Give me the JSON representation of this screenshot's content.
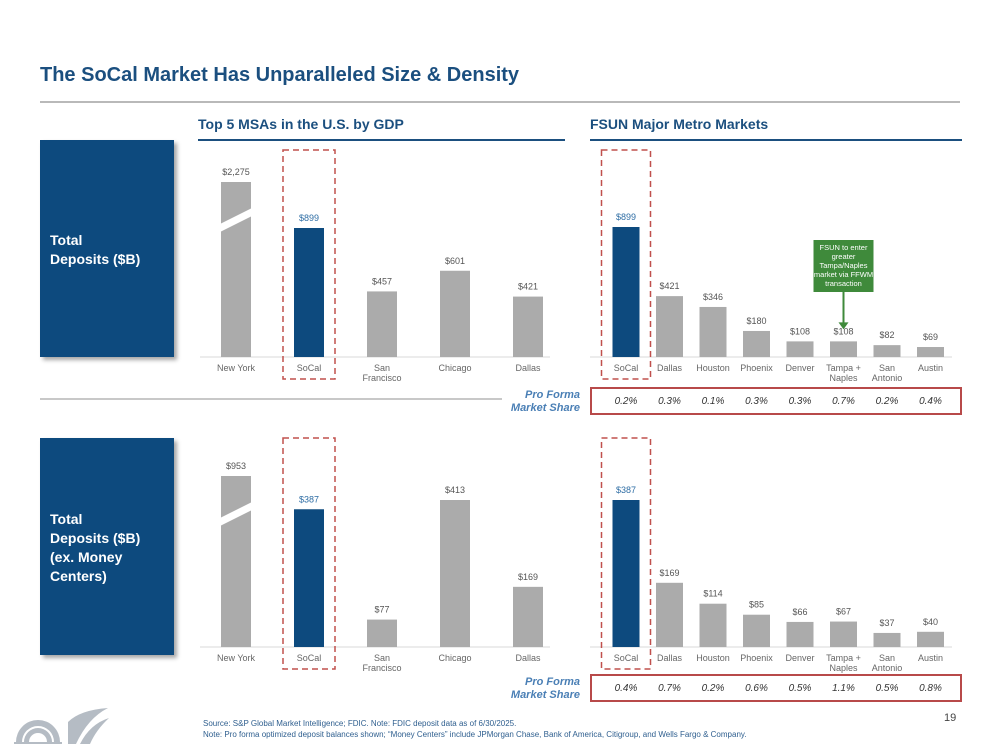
{
  "title": "The SoCal Market Has Unparalleled Size & Density",
  "left_header": "Top 5 MSAs in the U.S. by GDP",
  "right_header": "FSUN Major Metro Markets",
  "row_labels": {
    "top": [
      "Total",
      "Deposits ($B)"
    ],
    "bottom": [
      "Total",
      "Deposits ($B)",
      "(ex. Money",
      "Centers)"
    ]
  },
  "pro_forma_label": [
    "Pro Forma",
    "Market Share"
  ],
  "annotation": [
    "FSUN to enter",
    "greater",
    "Tampa/Naples",
    "market via FFWM",
    "transaction"
  ],
  "footer": [
    "Source: S&P Global Market Intelligence; FDIC. Note: FDIC deposit data as of 6/30/2025.",
    "Note: Pro forma optimized deposit balances shown; “Money Centers” include JPMorgan Chase, Bank of America, Citigroup, and Wells Fargo & Company."
  ],
  "page_number": "19",
  "colors": {
    "highlight": "#0d4a7e",
    "bar": "#ababab",
    "dash": "#c0504d",
    "annotation": "#3f8a3b",
    "label_highlight": "#2e6da4"
  },
  "chart_data": [
    {
      "type": "bar",
      "title": "Top 5 MSAs in the U.S. by GDP",
      "ylabel": "Total Deposits ($B)",
      "categories": [
        "New York",
        "SoCal",
        "San Francisco",
        "Chicago",
        "Dallas"
      ],
      "category_lines": [
        [
          "New York"
        ],
        [
          "SoCal"
        ],
        [
          "San",
          "Francisco"
        ],
        [
          "Chicago"
        ],
        [
          "Dallas"
        ]
      ],
      "values": [
        2275,
        899,
        457,
        601,
        421
      ],
      "labels": [
        "$2,275",
        "$899",
        "$457",
        "$601",
        "$421"
      ],
      "highlight": "SoCal",
      "broken_axis": "New York"
    },
    {
      "type": "bar",
      "title": "FSUN Major Metro Markets",
      "ylabel": "Total Deposits ($B)",
      "categories": [
        "SoCal",
        "Dallas",
        "Houston",
        "Phoenix",
        "Denver",
        "Tampa + Naples",
        "San Antonio",
        "Austin"
      ],
      "category_lines": [
        [
          "SoCal"
        ],
        [
          "Dallas"
        ],
        [
          "Houston"
        ],
        [
          "Phoenix"
        ],
        [
          "Denver"
        ],
        [
          "Tampa +",
          "Naples"
        ],
        [
          "San",
          "Antonio"
        ],
        [
          "Austin"
        ]
      ],
      "values": [
        899,
        421,
        346,
        180,
        108,
        108,
        82,
        69
      ],
      "labels": [
        "$899",
        "$421",
        "$346",
        "$180",
        "$108",
        "$108",
        "$82",
        "$69"
      ],
      "highlight": "SoCal",
      "pro_forma_market_share": [
        "0.2%",
        "0.3%",
        "0.1%",
        "0.3%",
        "0.3%",
        "0.7%",
        "0.2%",
        "0.4%"
      ]
    },
    {
      "type": "bar",
      "ylabel": "Total Deposits ($B) (ex. Money Centers)",
      "categories": [
        "New York",
        "SoCal",
        "San Francisco",
        "Chicago",
        "Dallas"
      ],
      "category_lines": [
        [
          "New York"
        ],
        [
          "SoCal"
        ],
        [
          "San",
          "Francisco"
        ],
        [
          "Chicago"
        ],
        [
          "Dallas"
        ]
      ],
      "values": [
        953,
        387,
        77,
        413,
        169
      ],
      "labels": [
        "$953",
        "$387",
        "$77",
        "$413",
        "$169"
      ],
      "highlight": "SoCal",
      "broken_axis": "New York"
    },
    {
      "type": "bar",
      "ylabel": "Total Deposits ($B) (ex. Money Centers)",
      "categories": [
        "SoCal",
        "Dallas",
        "Houston",
        "Phoenix",
        "Denver",
        "Tampa + Naples",
        "San Antonio",
        "Austin"
      ],
      "category_lines": [
        [
          "SoCal"
        ],
        [
          "Dallas"
        ],
        [
          "Houston"
        ],
        [
          "Phoenix"
        ],
        [
          "Denver"
        ],
        [
          "Tampa +",
          "Naples"
        ],
        [
          "San",
          "Antonio"
        ],
        [
          "Austin"
        ]
      ],
      "values": [
        387,
        169,
        114,
        85,
        66,
        67,
        37,
        40
      ],
      "labels": [
        "$387",
        "$169",
        "$114",
        "$85",
        "$66",
        "$67",
        "$37",
        "$40"
      ],
      "highlight": "SoCal",
      "pro_forma_market_share": [
        "0.4%",
        "0.7%",
        "0.2%",
        "0.6%",
        "0.5%",
        "1.1%",
        "0.5%",
        "0.8%"
      ]
    }
  ]
}
